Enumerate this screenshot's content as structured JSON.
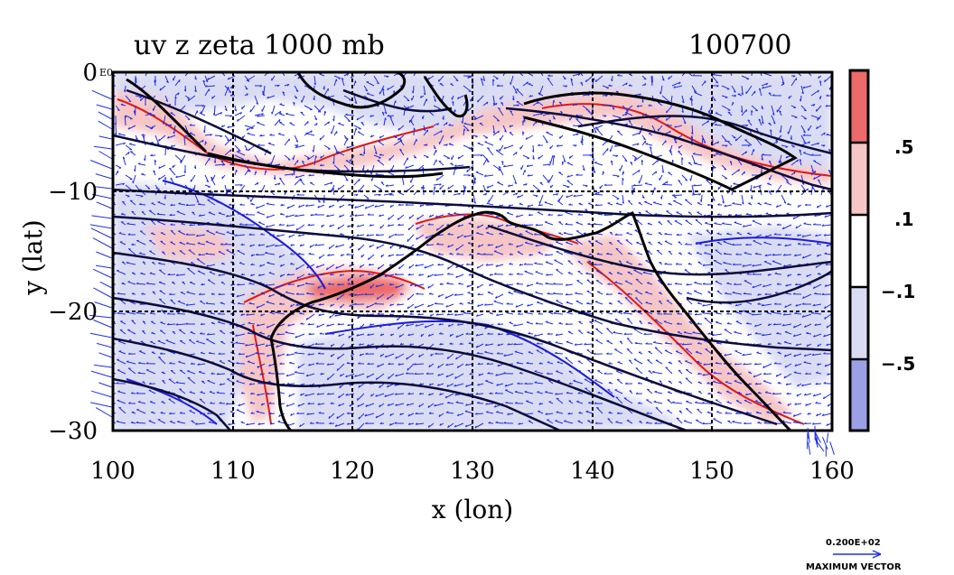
{
  "title": "uv z zeta 1000 mb",
  "date": "100700",
  "map": {
    "x_axis_label": "x (lon)",
    "y_axis_label": "y (lat)",
    "x_range": [
      100,
      160
    ],
    "y_range": [
      -30,
      0
    ],
    "x_ticks": [
      "100",
      "110",
      "120",
      "130",
      "140",
      "150",
      "160"
    ],
    "y_ticks": [
      "0",
      "−10",
      "−20",
      "−30"
    ],
    "origin_note": "E0",
    "colors": {
      "strong_positive": "#ec6a6a",
      "positive": "#f6c6c6",
      "neutral": "#ffffff",
      "negative": "#dadcf3",
      "strong_negative": "#9ba0e6",
      "contour": "#0b0b3a",
      "vorticity_pos_line": "#e01818",
      "vorticity_neg_line": "#1a1ad8",
      "vector": "#1f2ee6"
    }
  },
  "colorbar": {
    "labels": [
      ".5",
      ".1",
      "−.1",
      "−.5"
    ],
    "colors": [
      "#ec6a6a",
      "#f6c6c6",
      "#ffffff",
      "#dadcf3",
      "#9ba0e6"
    ]
  },
  "vector_key": {
    "value": "0.200E+02",
    "label": "MAXIMUM VECTOR"
  }
}
